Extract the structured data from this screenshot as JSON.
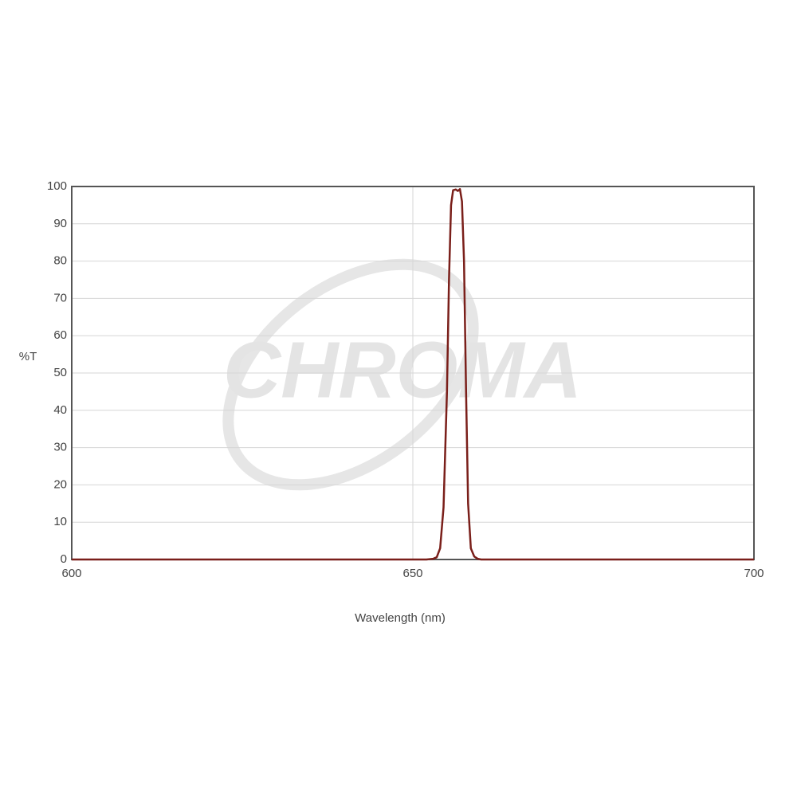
{
  "chart_data": {
    "type": "line",
    "xlabel": "Wavelength (nm)",
    "ylabel": "%T",
    "watermark": "CHROMA",
    "x": [
      600,
      650,
      652,
      653,
      653.5,
      654,
      654.5,
      655,
      655.3,
      655.6,
      655.9,
      656.3,
      656.6,
      656.9,
      657.2,
      657.5,
      657.8,
      658.1,
      658.5,
      659,
      659.5,
      660,
      700
    ],
    "series": [
      {
        "color": "#7a1f1a",
        "values": [
          0,
          0,
          0,
          0.2,
          0.6,
          3,
          14,
          45,
          75,
          95,
          99,
          99.2,
          98.8,
          99.3,
          96,
          80,
          45,
          15,
          3,
          0.8,
          0.2,
          0,
          0
        ]
      }
    ],
    "xlim": [
      600,
      700
    ],
    "xticks": [
      600,
      650,
      700
    ],
    "ylim": [
      0,
      100
    ],
    "yticks": [
      0,
      10,
      20,
      30,
      40,
      50,
      60,
      70,
      80,
      90,
      100
    ],
    "grid": true
  }
}
